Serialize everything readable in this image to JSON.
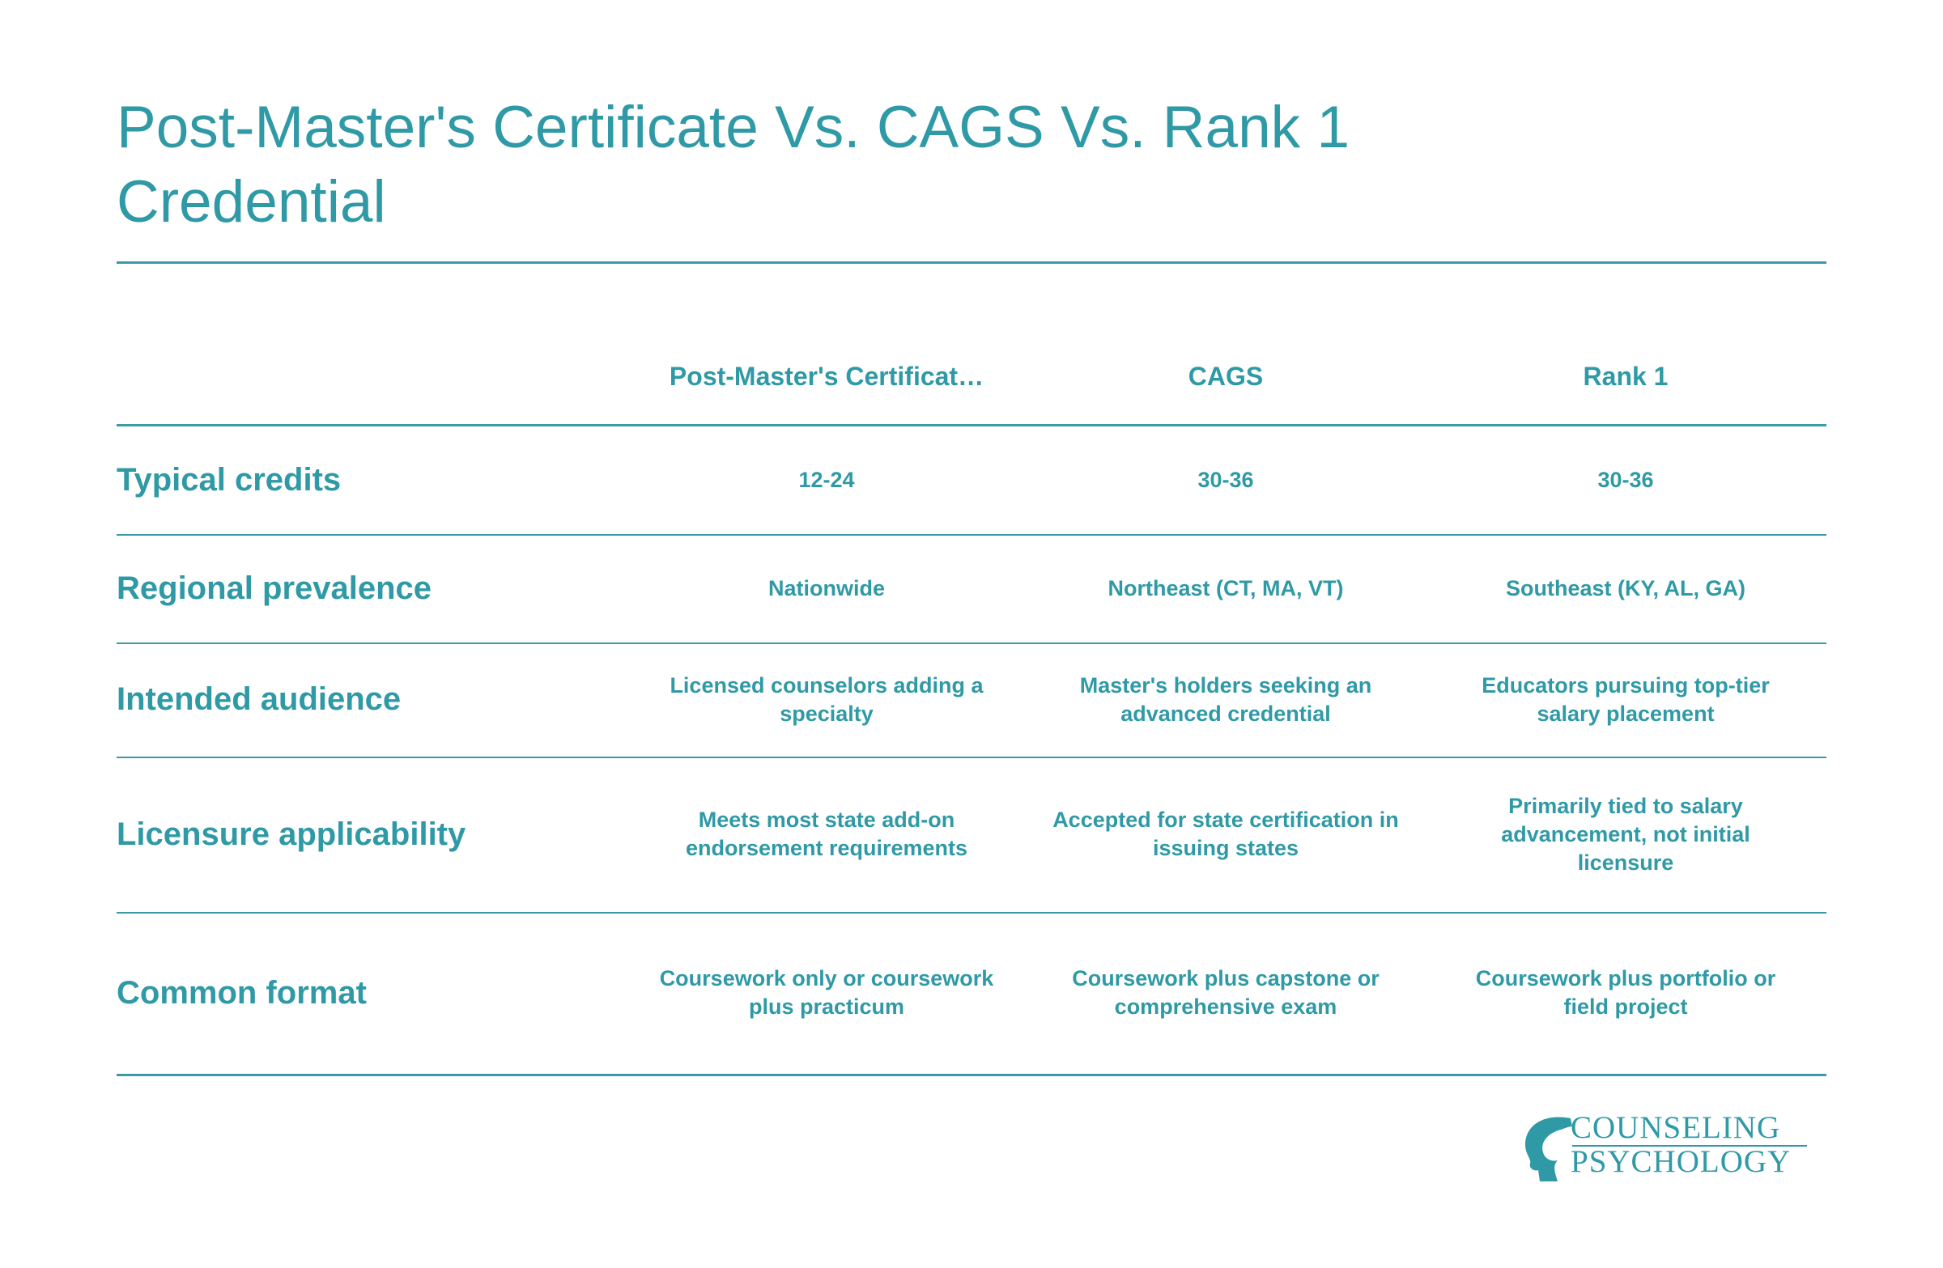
{
  "header": {
    "title": "Post-Master's Certificate Vs. CAGS Vs. Rank 1 Credential"
  },
  "table": {
    "columns": [
      "Post-Master's Certificat…",
      "CAGS",
      "Rank 1"
    ],
    "rows": [
      {
        "label": "Typical credits",
        "cells": [
          "12-24",
          "30-36",
          "30-36"
        ]
      },
      {
        "label": "Regional prevalence",
        "cells": [
          "Nationwide",
          "Northeast (CT, MA, VT)",
          "Southeast (KY, AL, GA)"
        ]
      },
      {
        "label": "Intended audience",
        "cells": [
          "Licensed counselors adding a specialty",
          "Master's holders seeking an advanced credential",
          "Educators pursuing top-tier salary placement"
        ]
      },
      {
        "label": "Licensure applicability",
        "cells": [
          "Meets most state add-on endorsement requirements",
          "Accepted for state certification in issuing states",
          "Primarily tied to salary advancement, not initial licensure"
        ]
      },
      {
        "label": "Common format",
        "cells": [
          "Coursework only or coursework plus practicum",
          "Coursework plus capstone or comprehensive exam",
          "Coursework plus portfolio or field project"
        ]
      }
    ]
  },
  "logo": {
    "line1": "COUNSELING",
    "line2": "PSYCHOLOGY"
  }
}
